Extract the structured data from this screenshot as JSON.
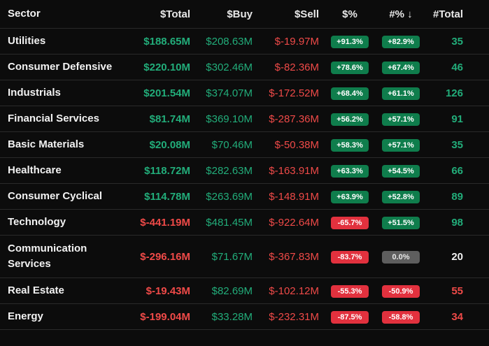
{
  "table": {
    "header": [
      "Sector",
      "$Total",
      "$Buy",
      "$Sell",
      "$%",
      "#% ↓",
      "#Total"
    ],
    "rows": [
      [
        "Utilities",
        "$188.65M",
        "$208.63M",
        "$-19.97M",
        "+91.3%",
        "+82.9%",
        "35"
      ],
      [
        "Consumer Defensive",
        "$220.10M",
        "$302.46M",
        "$-82.36M",
        "+78.6%",
        "+67.4%",
        "46"
      ],
      [
        "Industrials",
        "$201.54M",
        "$374.07M",
        "$-172.52M",
        "+68.4%",
        "+61.1%",
        "126"
      ],
      [
        "Financial Services",
        "$81.74M",
        "$369.10M",
        "$-287.36M",
        "+56.2%",
        "+57.1%",
        "91"
      ],
      [
        "Basic Materials",
        "$20.08M",
        "$70.46M",
        "$-50.38M",
        "+58.3%",
        "+57.1%",
        "35"
      ],
      [
        "Healthcare",
        "$118.72M",
        "$282.63M",
        "$-163.91M",
        "+63.3%",
        "+54.5%",
        "66"
      ],
      [
        "Consumer Cyclical",
        "$114.78M",
        "$263.69M",
        "$-148.91M",
        "+63.9%",
        "+52.8%",
        "89"
      ],
      [
        "Technology",
        "$-441.19M",
        "$481.45M",
        "$-922.64M",
        "-65.7%",
        "+51.5%",
        "98"
      ],
      [
        "Communication Services",
        "$-296.16M",
        "$71.67M",
        "$-367.83M",
        "-83.7%",
        "0.0%",
        "20"
      ],
      [
        "Real Estate",
        "$-19.43M",
        "$82.69M",
        "$-102.12M",
        "-55.3%",
        "-50.9%",
        "55"
      ],
      [
        "Energy",
        "$-199.04M",
        "$33.28M",
        "$-232.31M",
        "-87.5%",
        "-58.8%",
        "34"
      ]
    ]
  }
}
